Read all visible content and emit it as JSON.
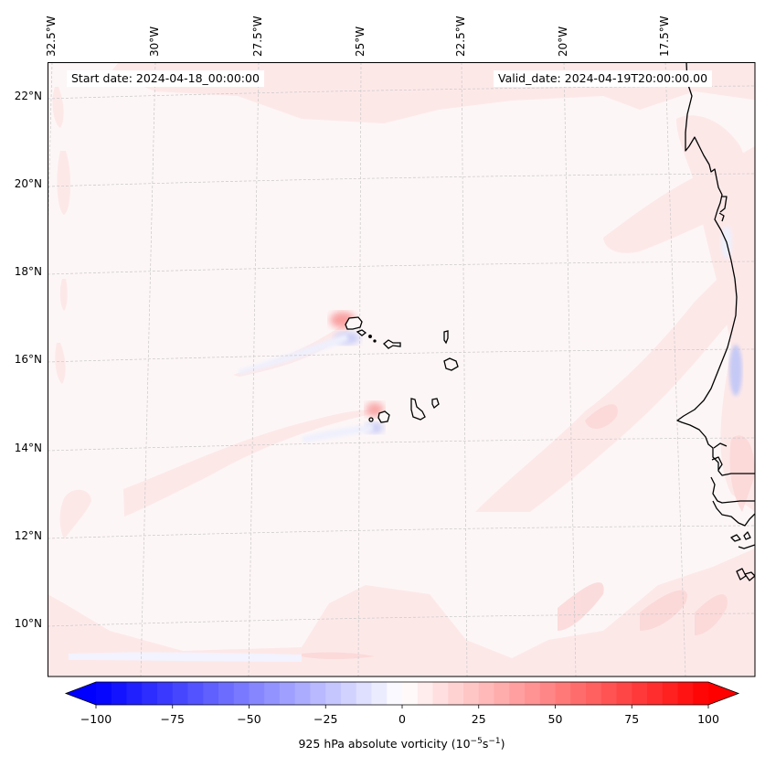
{
  "map": {
    "start_date_text": "Start date: 2024-04-18_00:00:00",
    "valid_date_text": "Valid_date: 2024-04-19T20:00:00.00",
    "longitude_labels": [
      "32.5°W",
      "30°W",
      "27.5°W",
      "25°W",
      "22.5°W",
      "20°W",
      "17.5°W"
    ],
    "latitude_labels": [
      "22°N",
      "20°N",
      "18°N",
      "16°N",
      "14°N",
      "12°N",
      "10°N"
    ],
    "field": "925 hPa absolute vorticity",
    "background_color": "#fdf6f6",
    "coastline_color": "#000000",
    "features": [
      {
        "name": "cabo-verde-barlavento-islands",
        "anomaly": "positive+negative dipole"
      },
      {
        "name": "cabo-verde-sotavento-islands",
        "anomaly": "positive+negative dipole"
      },
      {
        "name": "west-african-coast",
        "anomaly": "weak positive bands"
      }
    ]
  },
  "colorbar": {
    "title_prefix": "925 hPa absolute vorticity (10",
    "title_exp1": "−5",
    "title_mid": "s",
    "title_exp2": "−1",
    "title_suffix": ")",
    "min": -100,
    "max": 100,
    "step": 5,
    "extend": "both",
    "cmap": "bwr",
    "low_color": "#0000ff",
    "mid_color": "#ffffff",
    "high_color": "#ff0000",
    "ticks": [
      -100,
      -75,
      -50,
      -25,
      0,
      25,
      50,
      75,
      100
    ],
    "tick_labels": [
      "−100",
      "−75",
      "−50",
      "−25",
      "0",
      "25",
      "50",
      "75",
      "100"
    ]
  }
}
